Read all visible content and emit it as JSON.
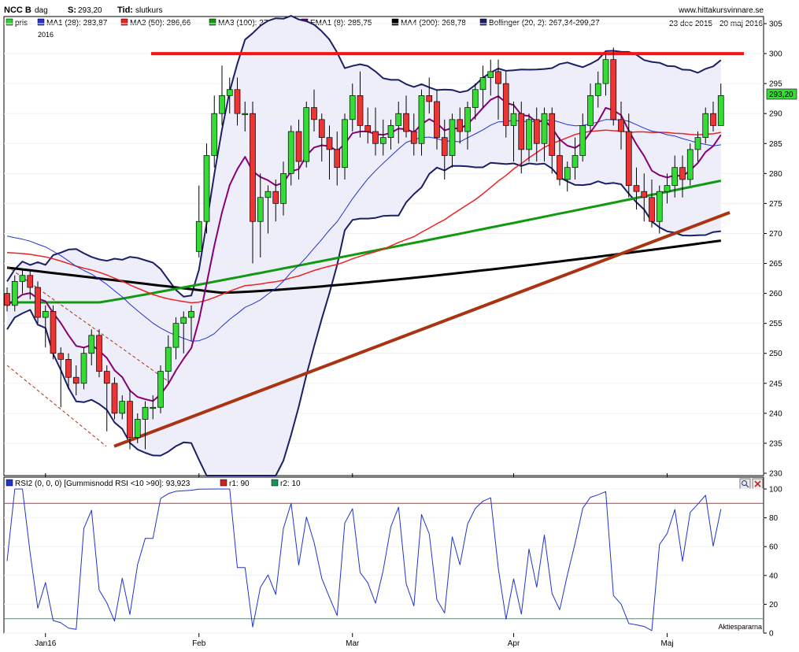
{
  "header": {
    "ticker": "NCC B",
    "period": "dag",
    "s_label": "S:",
    "s_value": "293,20",
    "tid_label": "Tid:",
    "tid_value": "slutkurs",
    "site": "www.hittakursvinnare.se",
    "daterange": "23 dec 2015 - 20 maj 2016",
    "year": "2016"
  },
  "price_legend": [
    {
      "label": "pris",
      "color": "#33cc33"
    },
    {
      "label": "MA1 (28): 283,87",
      "color": "#2233cc"
    },
    {
      "label": "MA2 (50): 286,66",
      "color": "#ee2222"
    },
    {
      "label": "MA3 (100): 278,76",
      "color": "#119911"
    },
    {
      "label": "EMA1 (8): 285,75",
      "color": "#880077"
    },
    {
      "label": "MA4 (200): 268,78",
      "color": "#000000"
    },
    {
      "label": "Bollinger (20, 2): 267,34-299,27",
      "color": "#1a1f66"
    }
  ],
  "rsi_legend": [
    {
      "label": "RSI2 (0, 0, 0) [Gummisnodd RSI <10 >90]: 93,923",
      "color": "#2233cc"
    },
    {
      "label": "r1: 90",
      "color": "#cc2222"
    },
    {
      "label": "r2: 10",
      "color": "#119955"
    }
  ],
  "last_price_label": "293,20",
  "footer_credit": "Aktiespararna",
  "colors": {
    "up": "#33dd33",
    "down": "#ee3333",
    "rsi": "#2233cc",
    "r1": "#cc3333",
    "r2": "#22aa66",
    "support": "#aa3311",
    "resistance": "#ff1111"
  },
  "chart_data": [
    {
      "type": "candlestick",
      "title": "NCC B - dag",
      "ylim": [
        230,
        305
      ],
      "yticks": [
        230,
        235,
        240,
        245,
        250,
        255,
        260,
        265,
        270,
        275,
        280,
        285,
        290,
        295,
        300,
        305
      ],
      "xticks": [
        {
          "label": "Jan16",
          "index": 5
        },
        {
          "label": "Feb",
          "index": 25
        },
        {
          "label": "Mar",
          "index": 45
        },
        {
          "label": "Apr",
          "index": 66
        },
        {
          "label": "Maj",
          "index": 86
        }
      ],
      "candles": [
        [
          260,
          261,
          257,
          258
        ],
        [
          258,
          263,
          257,
          262
        ],
        [
          262,
          264,
          260,
          263
        ],
        [
          263,
          264,
          259,
          261
        ],
        [
          261,
          262,
          255,
          256
        ],
        [
          256,
          258,
          251,
          257
        ],
        [
          257,
          258,
          249,
          250
        ],
        [
          250,
          251,
          241,
          249
        ],
        [
          249,
          250,
          244,
          246
        ],
        [
          246,
          248,
          243,
          245
        ],
        [
          245,
          251,
          244,
          250
        ],
        [
          250,
          254,
          248,
          253
        ],
        [
          253,
          254,
          246,
          247
        ],
        [
          247,
          248,
          237,
          245
        ],
        [
          245,
          246,
          239,
          240
        ],
        [
          240,
          243,
          239,
          242
        ],
        [
          242,
          244,
          234,
          236
        ],
        [
          236,
          240,
          235,
          239
        ],
        [
          239,
          242,
          234,
          241
        ],
        [
          241,
          243,
          239,
          241
        ],
        [
          241,
          248,
          240,
          247
        ],
        [
          247,
          253,
          245,
          251
        ],
        [
          251,
          256,
          249,
          255
        ],
        [
          255,
          257,
          250,
          256
        ],
        [
          256,
          258,
          252,
          257
        ],
        [
          267,
          278,
          266,
          272
        ],
        [
          272,
          285,
          270,
          283
        ],
        [
          283,
          293,
          281,
          290
        ],
        [
          290,
          298,
          288,
          293
        ],
        [
          293,
          296,
          290,
          294
        ],
        [
          294,
          296,
          288,
          290
        ],
        [
          290,
          292,
          287,
          290
        ],
        [
          290,
          292,
          265,
          272
        ],
        [
          272,
          280,
          266,
          276
        ],
        [
          276,
          278,
          270,
          277
        ],
        [
          277,
          279,
          272,
          275
        ],
        [
          275,
          282,
          273,
          280
        ],
        [
          280,
          288,
          278,
          287
        ],
        [
          287,
          289,
          279,
          282
        ],
        [
          282,
          292,
          281,
          291
        ],
        [
          291,
          294,
          287,
          289
        ],
        [
          289,
          290,
          282,
          286
        ],
        [
          286,
          288,
          279,
          284
        ],
        [
          284,
          287,
          278,
          281
        ],
        [
          281,
          290,
          279,
          289
        ],
        [
          289,
          295,
          287,
          293
        ],
        [
          293,
          297,
          286,
          288
        ],
        [
          288,
          291,
          285,
          287
        ],
        [
          287,
          291,
          283,
          285
        ],
        [
          285,
          289,
          283,
          286
        ],
        [
          286,
          289,
          284,
          288
        ],
        [
          288,
          292,
          285,
          290
        ],
        [
          290,
          293,
          286,
          287
        ],
        [
          287,
          290,
          283,
          285
        ],
        [
          285,
          294,
          283,
          293
        ],
        [
          293,
          296,
          290,
          292
        ],
        [
          292,
          294,
          284,
          286
        ],
        [
          286,
          289,
          279,
          283
        ],
        [
          283,
          290,
          281,
          289
        ],
        [
          289,
          291,
          285,
          287
        ],
        [
          287,
          292,
          284,
          291
        ],
        [
          291,
          295,
          289,
          294
        ],
        [
          294,
          298,
          291,
          296
        ],
        [
          296,
          299,
          293,
          297
        ],
        [
          297,
          299,
          289,
          295
        ],
        [
          295,
          297,
          286,
          288
        ],
        [
          288,
          292,
          282,
          290
        ],
        [
          290,
          292,
          280,
          284
        ],
        [
          284,
          290,
          282,
          289
        ],
        [
          289,
          291,
          282,
          285
        ],
        [
          285,
          291,
          282,
          290
        ],
        [
          290,
          291,
          280,
          283
        ],
        [
          283,
          286,
          278,
          279
        ],
        [
          279,
          282,
          277,
          281
        ],
        [
          281,
          286,
          279,
          283
        ],
        [
          283,
          290,
          282,
          288
        ],
        [
          288,
          295,
          287,
          293
        ],
        [
          293,
          297,
          291,
          295
        ],
        [
          295,
          300,
          293,
          299
        ],
        [
          299,
          301,
          288,
          289
        ],
        [
          289,
          292,
          284,
          287
        ],
        [
          287,
          290,
          276,
          278
        ],
        [
          278,
          281,
          274,
          277
        ],
        [
          277,
          280,
          272,
          276
        ],
        [
          276,
          279,
          271,
          272
        ],
        [
          272,
          278,
          270,
          277
        ],
        [
          277,
          280,
          275,
          278
        ],
        [
          278,
          283,
          276,
          281
        ],
        [
          281,
          283,
          276,
          279
        ],
        [
          279,
          285,
          278,
          284
        ],
        [
          284,
          287,
          282,
          286
        ],
        [
          286,
          291,
          285,
          290
        ],
        [
          290,
          292,
          287,
          288
        ],
        [
          288,
          295,
          288,
          293
        ]
      ],
      "resistance_level": 300,
      "support_line": {
        "from": [
          16,
          234.5
        ],
        "to": [
          92,
          273.5
        ]
      }
    },
    {
      "type": "line",
      "title": "RSI2",
      "ylim": [
        0,
        100
      ],
      "yticks": [
        0,
        20,
        40,
        60,
        80,
        100
      ],
      "r1": 90,
      "r2": 10
    }
  ]
}
